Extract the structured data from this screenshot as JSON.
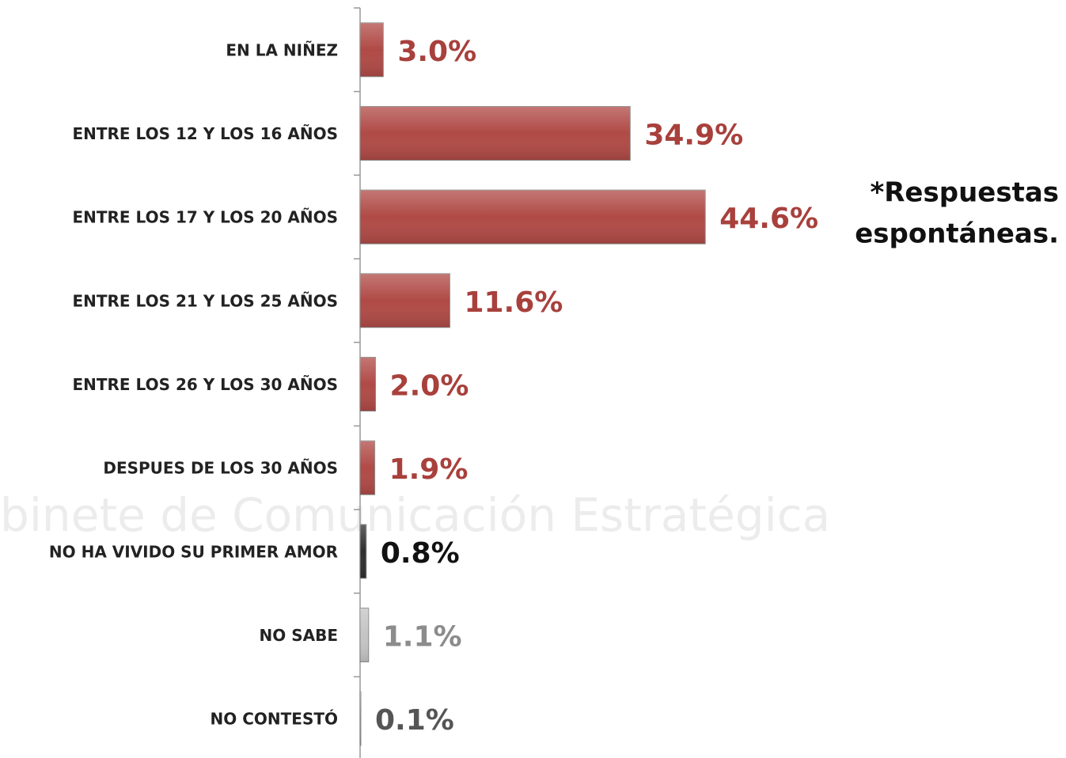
{
  "chart_data": {
    "type": "hbar",
    "categories": [
      "EN LA NIÑEZ",
      "ENTRE LOS 12 Y LOS 16 AÑOS",
      "ENTRE LOS 17 Y LOS 20 AÑOS",
      "ENTRE LOS 21 Y LOS 25 AÑOS",
      "ENTRE LOS 26 Y LOS 30 AÑOS",
      "DESPUES DE LOS 30 AÑOS",
      "NO HA VIVIDO SU PRIMER AMOR",
      "NO SABE",
      "NO CONTESTÓ"
    ],
    "values": [
      3.0,
      34.9,
      44.6,
      11.6,
      2.0,
      1.9,
      0.8,
      1.1,
      0.1
    ],
    "value_labels": [
      "3.0%",
      "34.9%",
      "44.6%",
      "11.6%",
      "2.0%",
      "1.9%",
      "0.8%",
      "1.1%",
      "0.1%"
    ],
    "colors": [
      "#b04a46",
      "#b04a46",
      "#b04a46",
      "#b04a46",
      "#b04a46",
      "#b04a46",
      "#2f2f2f",
      "#c4c4c4",
      "#e6e6e6"
    ],
    "label_colors": [
      "#a8403c",
      "#a8403c",
      "#a8403c",
      "#a8403c",
      "#a8403c",
      "#a8403c",
      "#111111",
      "#8c8c8c",
      "#555555"
    ],
    "xlim": [
      0,
      50
    ],
    "annotation": [
      "*Respuestas",
      "espontáneas."
    ],
    "watermark": "binete de Comunicación Estratégica"
  }
}
